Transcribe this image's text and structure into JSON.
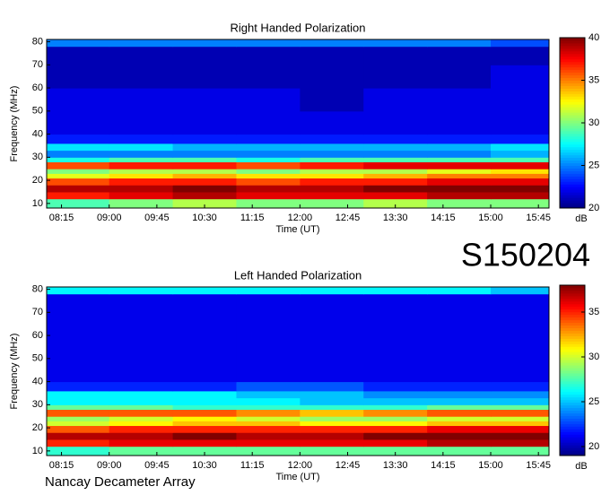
{
  "header": {
    "id": "S150204"
  },
  "footer": {
    "credit": "Nancay Decameter Array"
  },
  "chart_data": [
    {
      "type": "heatmap",
      "title": "Right Handed Polarization",
      "x_label": "Time (UT)",
      "y_label": "Frequency (MHz)",
      "colorbar_label": "dB",
      "x": [
        481,
        540,
        600,
        660,
        720,
        780,
        840,
        900,
        955
      ],
      "y": [
        8,
        12,
        15,
        18,
        21,
        23,
        25,
        28,
        30,
        33,
        36,
        40,
        50,
        60,
        70,
        78,
        81
      ],
      "z": [
        [
          29,
          30,
          31,
          30,
          30,
          31,
          30,
          30
        ],
        [
          37,
          38,
          39,
          38,
          38,
          38,
          39,
          39
        ],
        [
          39,
          39,
          40,
          39,
          39,
          40,
          40,
          40
        ],
        [
          36,
          37,
          37,
          36,
          37,
          37,
          38,
          38
        ],
        [
          32,
          33,
          34,
          33,
          33,
          34,
          35,
          35
        ],
        [
          30,
          31,
          31,
          30,
          31,
          31,
          32,
          33
        ],
        [
          36,
          37,
          37,
          36,
          37,
          38,
          38,
          38
        ],
        [
          28,
          29,
          29,
          28,
          29,
          29,
          29,
          29
        ],
        [
          25,
          25,
          25,
          25,
          25,
          25,
          25,
          26
        ],
        [
          27,
          27,
          26,
          26,
          26,
          26,
          26,
          27
        ],
        [
          23,
          23,
          23,
          23,
          23,
          23,
          23,
          23
        ],
        [
          22,
          22,
          22,
          22,
          22,
          22,
          22,
          22
        ],
        [
          22,
          22,
          22,
          22,
          21,
          22,
          22,
          22
        ],
        [
          21,
          21,
          21,
          21,
          21,
          21,
          21,
          22
        ],
        [
          21,
          21,
          21,
          21,
          21,
          21,
          21,
          21
        ],
        [
          25,
          25,
          25,
          25,
          25,
          25,
          25,
          24
        ]
      ],
      "xlim": [
        481,
        955
      ],
      "xticks": [
        {
          "value": 495,
          "label": "08:15"
        },
        {
          "value": 540,
          "label": "09:00"
        },
        {
          "value": 585,
          "label": "09:45"
        },
        {
          "value": 630,
          "label": "10:30"
        },
        {
          "value": 675,
          "label": "11:15"
        },
        {
          "value": 720,
          "label": "12:00"
        },
        {
          "value": 765,
          "label": "12:45"
        },
        {
          "value": 810,
          "label": "13:30"
        },
        {
          "value": 855,
          "label": "14:15"
        },
        {
          "value": 900,
          "label": "15:00"
        },
        {
          "value": 945,
          "label": "15:45"
        }
      ],
      "ylim": [
        8,
        81
      ],
      "yticks": [
        10,
        20,
        30,
        40,
        50,
        60,
        70,
        80
      ],
      "zlim": [
        20,
        40
      ],
      "zticks": [
        20,
        25,
        30,
        35,
        40
      ],
      "colormap": "jet"
    },
    {
      "type": "heatmap",
      "title": "Left Handed Polarization",
      "x_label": "Time (UT)",
      "y_label": "Frequency (MHz)",
      "colorbar_label": "dB",
      "x": [
        481,
        540,
        600,
        660,
        720,
        780,
        840,
        900,
        955
      ],
      "y": [
        8,
        12,
        15,
        18,
        21,
        23,
        25,
        28,
        30,
        33,
        36,
        40,
        50,
        60,
        70,
        78,
        81
      ],
      "z": [
        [
          27,
          28,
          28,
          28,
          28,
          28,
          28,
          28
        ],
        [
          35,
          36,
          36,
          36,
          36,
          36,
          37,
          37
        ],
        [
          37,
          37,
          38,
          37,
          37,
          38,
          38,
          38
        ],
        [
          34,
          35,
          35,
          35,
          35,
          35,
          36,
          36
        ],
        [
          30,
          31,
          32,
          32,
          31,
          31,
          32,
          32
        ],
        [
          29,
          30,
          31,
          30,
          29,
          29,
          30,
          30
        ],
        [
          34,
          34,
          34,
          33,
          32,
          33,
          34,
          34
        ],
        [
          28,
          28,
          27,
          27,
          27,
          27,
          28,
          28
        ],
        [
          26,
          26,
          26,
          26,
          25,
          25,
          25,
          25
        ],
        [
          26,
          26,
          26,
          25,
          25,
          24,
          24,
          24
        ],
        [
          22,
          22,
          22,
          23,
          23,
          22,
          22,
          22
        ],
        [
          21,
          21,
          21,
          21,
          21,
          21,
          21,
          21
        ],
        [
          21,
          21,
          21,
          21,
          21,
          21,
          21,
          21
        ],
        [
          21,
          21,
          21,
          21,
          21,
          21,
          21,
          21
        ],
        [
          21,
          21,
          21,
          21,
          21,
          21,
          21,
          21
        ],
        [
          26,
          26,
          26,
          26,
          26,
          26,
          26,
          25
        ]
      ],
      "xlim": [
        481,
        955
      ],
      "xticks": [
        {
          "value": 495,
          "label": "08:15"
        },
        {
          "value": 540,
          "label": "09:00"
        },
        {
          "value": 585,
          "label": "09:45"
        },
        {
          "value": 630,
          "label": "10:30"
        },
        {
          "value": 675,
          "label": "11:15"
        },
        {
          "value": 720,
          "label": "12:00"
        },
        {
          "value": 765,
          "label": "12:45"
        },
        {
          "value": 810,
          "label": "13:30"
        },
        {
          "value": 855,
          "label": "14:15"
        },
        {
          "value": 900,
          "label": "15:00"
        },
        {
          "value": 945,
          "label": "15:45"
        }
      ],
      "ylim": [
        8,
        81
      ],
      "yticks": [
        10,
        20,
        30,
        40,
        50,
        60,
        70,
        80
      ],
      "zlim": [
        19,
        38
      ],
      "zticks": [
        20,
        25,
        30,
        35
      ],
      "colormap": "jet"
    }
  ]
}
